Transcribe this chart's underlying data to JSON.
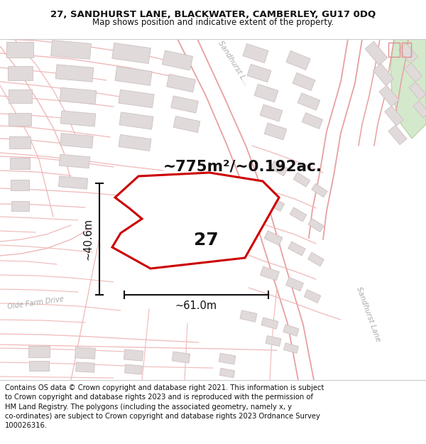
{
  "title": "27, SANDHURST LANE, BLACKWATER, CAMBERLEY, GU17 0DQ",
  "subtitle": "Map shows position and indicative extent of the property.",
  "footer": "Contains OS data © Crown copyright and database right 2021. This information is subject\nto Crown copyright and database rights 2023 and is reproduced with the permission of\nHM Land Registry. The polygons (including the associated geometry, namely x, y\nco-ordinates) are subject to Crown copyright and database rights 2023 Ordnance Survey\n100026316.",
  "area_text": "~775m²/~0.192ac.",
  "dim_width": "~61.0m",
  "dim_height": "~40.6m",
  "property_number": "27",
  "map_bg": "#ffffff",
  "road_color": "#f0b8b8",
  "road_color2": "#e8a0a0",
  "building_fill": "#e0dada",
  "building_edge": "#d0c0c0",
  "property_fill": "#ffffff",
  "property_edge": "#cc0000",
  "dim_color": "#111111",
  "text_color": "#111111",
  "road_label_color": "#aaaaaa",
  "green_fill": "#d4e8cc",
  "green_edge": "#b0cc98",
  "title_fontsize": 9.5,
  "subtitle_fontsize": 8.5,
  "footer_fontsize": 7.2,
  "sandhurst_upper_label": "Sandhurst L...",
  "sandhurst_lower_label": "Sandhurst Lane",
  "olde_farm_label": "Olde Farm Drive"
}
